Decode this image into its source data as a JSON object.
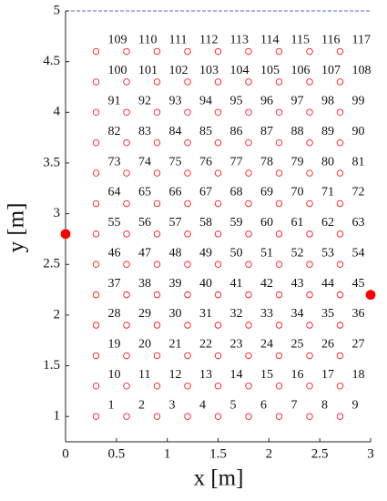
{
  "chart_data": {
    "type": "scatter",
    "xlabel": "x [m]",
    "ylabel": "y [m]",
    "xlim": [
      0,
      3
    ],
    "ylim": [
      0.75,
      5
    ],
    "xticks": [
      0,
      0.5,
      1,
      1.5,
      2,
      2.5,
      3
    ],
    "yticks": [
      1,
      1.5,
      2,
      2.5,
      3,
      3.5,
      4,
      4.5,
      5
    ],
    "series": [
      {
        "color": "#ff0000",
        "marker": "open",
        "x": [
          0.3,
          0.6,
          0.9,
          1.2,
          1.5,
          1.8,
          2.1,
          2.4,
          2.7,
          0.3,
          0.6,
          0.9,
          1.2,
          1.5,
          1.8,
          2.1,
          2.4,
          2.7,
          0.3,
          0.6,
          0.9,
          1.2,
          1.5,
          1.8,
          2.1,
          2.4,
          2.7,
          0.3,
          0.6,
          0.9,
          1.2,
          1.5,
          1.8,
          2.1,
          2.4,
          2.7,
          0.3,
          0.6,
          0.9,
          1.2,
          1.5,
          1.8,
          2.1,
          2.4,
          2.7,
          0.3,
          0.6,
          0.9,
          1.2,
          1.5,
          1.8,
          2.1,
          2.4,
          2.7,
          0.3,
          0.6,
          0.9,
          1.2,
          1.5,
          1.8,
          2.1,
          2.4,
          2.7,
          0.3,
          0.6,
          0.9,
          1.2,
          1.5,
          1.8,
          2.1,
          2.4,
          2.7,
          0.3,
          0.6,
          0.9,
          1.2,
          1.5,
          1.8,
          2.1,
          2.4,
          2.7,
          0.3,
          0.6,
          0.9,
          1.2,
          1.5,
          1.8,
          2.1,
          2.4,
          2.7,
          0.3,
          0.6,
          0.9,
          1.2,
          1.5,
          1.8,
          2.1,
          2.4,
          2.7,
          0.3,
          0.6,
          0.9,
          1.2,
          1.5,
          1.8,
          2.1,
          2.4,
          2.7,
          0.3,
          0.6,
          0.9,
          1.2,
          1.5,
          1.8,
          2.1,
          2.4,
          2.7
        ],
        "values": [
          1,
          1,
          1,
          1,
          1,
          1,
          1,
          1,
          1,
          1.3,
          1.3,
          1.3,
          1.3,
          1.3,
          1.3,
          1.3,
          1.3,
          1.3,
          1.6,
          1.6,
          1.6,
          1.6,
          1.6,
          1.6,
          1.6,
          1.6,
          1.6,
          1.9,
          1.9,
          1.9,
          1.9,
          1.9,
          1.9,
          1.9,
          1.9,
          1.9,
          2.2,
          2.2,
          2.2,
          2.2,
          2.2,
          2.2,
          2.2,
          2.2,
          2.2,
          2.5,
          2.5,
          2.5,
          2.5,
          2.5,
          2.5,
          2.5,
          2.5,
          2.5,
          2.8,
          2.8,
          2.8,
          2.8,
          2.8,
          2.8,
          2.8,
          2.8,
          2.8,
          3.1,
          3.1,
          3.1,
          3.1,
          3.1,
          3.1,
          3.1,
          3.1,
          3.1,
          3.4,
          3.4,
          3.4,
          3.4,
          3.4,
          3.4,
          3.4,
          3.4,
          3.4,
          3.7,
          3.7,
          3.7,
          3.7,
          3.7,
          3.7,
          3.7,
          3.7,
          3.7,
          4,
          4,
          4,
          4,
          4,
          4,
          4,
          4,
          4,
          4.3,
          4.3,
          4.3,
          4.3,
          4.3,
          4.3,
          4.3,
          4.3,
          4.3,
          4.6,
          4.6,
          4.6,
          4.6,
          4.6,
          4.6,
          4.6,
          4.6,
          4.6
        ],
        "labels": [
          "1",
          "2",
          "3",
          "4",
          "5",
          "6",
          "7",
          "8",
          "9",
          "10",
          "11",
          "12",
          "13",
          "14",
          "15",
          "16",
          "17",
          "18",
          "19",
          "20",
          "21",
          "22",
          "23",
          "24",
          "25",
          "26",
          "27",
          "28",
          "29",
          "30",
          "31",
          "32",
          "33",
          "34",
          "35",
          "36",
          "37",
          "38",
          "39",
          "40",
          "41",
          "42",
          "43",
          "44",
          "45",
          "46",
          "47",
          "48",
          "49",
          "50",
          "51",
          "52",
          "53",
          "54",
          "55",
          "56",
          "57",
          "58",
          "59",
          "60",
          "61",
          "62",
          "63",
          "64",
          "65",
          "66",
          "67",
          "68",
          "69",
          "70",
          "71",
          "72",
          "73",
          "74",
          "75",
          "76",
          "77",
          "78",
          "79",
          "80",
          "81",
          "82",
          "83",
          "84",
          "85",
          "86",
          "87",
          "88",
          "89",
          "90",
          "91",
          "92",
          "93",
          "94",
          "95",
          "96",
          "97",
          "98",
          "99",
          "100",
          "101",
          "102",
          "103",
          "104",
          "105",
          "106",
          "107",
          "108",
          "109",
          "110",
          "111",
          "112",
          "113",
          "114",
          "115",
          "116",
          "117"
        ]
      },
      {
        "color": "#ff0000",
        "marker": "filled",
        "x": [
          0,
          3
        ],
        "values": [
          2.8,
          2.2
        ]
      }
    ]
  }
}
